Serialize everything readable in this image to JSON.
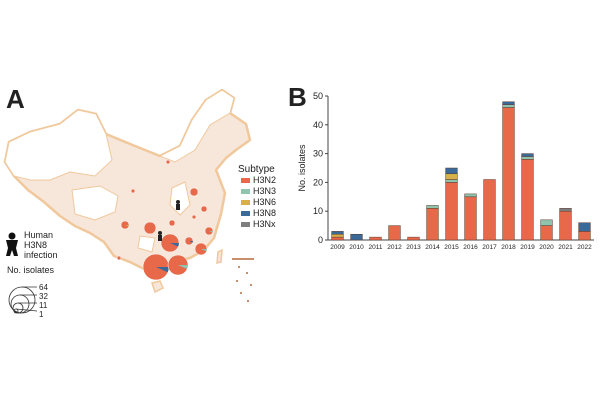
{
  "panel_a": {
    "label": "A",
    "legend_title": "Subtype",
    "human_legend": [
      "Human",
      "H3N8",
      "infection"
    ],
    "size_legend_title": "No. isolates",
    "size_legend_values": [
      "64",
      "32",
      "11",
      "1"
    ]
  },
  "panel_b": {
    "label": "B"
  },
  "colors": {
    "H3N2": "#e8694a",
    "H3N3": "#8fc4ad",
    "H3N6": "#d8b04a",
    "H3N8": "#3b6998",
    "H3Nx": "#7e7e7e",
    "map_fill": "#f7e6da",
    "map_border": "#f0c89c"
  },
  "chart_data": {
    "type": "bar",
    "stacked": true,
    "title": "",
    "xlabel": "",
    "ylabel": "No. isolates",
    "ylim": [
      0,
      50
    ],
    "yticks": [
      0,
      10,
      20,
      30,
      40,
      50
    ],
    "categories": [
      "2009",
      "2010",
      "2011",
      "2012",
      "2013",
      "2014",
      "2015",
      "2016",
      "2017",
      "2018",
      "2019",
      "2020",
      "2021",
      "2022"
    ],
    "legend": [
      "H3N2",
      "H3N3",
      "H3N6",
      "H3N8",
      "H3Nx"
    ],
    "series": [
      {
        "name": "H3N2",
        "values": [
          1,
          0,
          1,
          5,
          1,
          11,
          20,
          15,
          21,
          46,
          28,
          5,
          10,
          3
        ]
      },
      {
        "name": "H3N3",
        "values": [
          0,
          0,
          0,
          0,
          0,
          1,
          1,
          1,
          0,
          1,
          1,
          2,
          0,
          0
        ]
      },
      {
        "name": "H3N6",
        "values": [
          1,
          0,
          0,
          0,
          0,
          0,
          2,
          0,
          0,
          0,
          0,
          0,
          0,
          0
        ]
      },
      {
        "name": "H3N8",
        "values": [
          1,
          2,
          0,
          0,
          0,
          0,
          2,
          0,
          0,
          1,
          1,
          0,
          0,
          3
        ]
      },
      {
        "name": "H3Nx",
        "values": [
          0,
          0,
          0,
          0,
          0,
          0,
          0,
          0,
          0,
          0,
          0,
          0,
          1,
          0
        ]
      }
    ]
  }
}
